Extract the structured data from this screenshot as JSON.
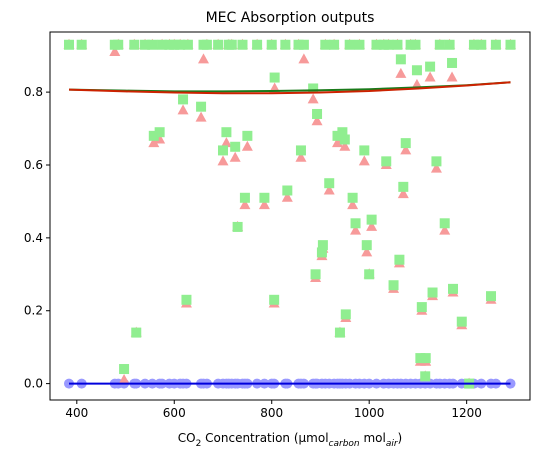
{
  "chart_data": {
    "type": "scatter",
    "title": "MEC Absorption outputs",
    "xlabel": {
      "base": "CO",
      "sub": "2",
      "mid": " Concentration (μmol",
      "sub2": "carbon",
      "mid2": " mol",
      "sub3": "air",
      "end": ")"
    },
    "ylabel": "",
    "xlim": [
      345,
      1330
    ],
    "ylim": [
      -0.045,
      0.965
    ],
    "xticks": [
      400,
      600,
      800,
      1000,
      1200
    ],
    "yticks": [
      0.0,
      0.2,
      0.4,
      0.6,
      0.8
    ],
    "xtick_labels": [
      "400",
      "600",
      "800",
      "1000",
      "1200"
    ],
    "ytick_labels": [
      "0.0",
      "0.2",
      "0.4",
      "0.6",
      "0.8"
    ],
    "grid": false,
    "series": [
      {
        "marker": "triangle",
        "color": "#f79a9a",
        "points": [
          [
            384,
            0.93
          ],
          [
            410,
            0.93
          ],
          [
            478,
            0.91
          ],
          [
            485,
            0.93
          ],
          [
            497,
            0.01
          ],
          [
            518,
            0.93
          ],
          [
            522,
            0.14
          ],
          [
            540,
            0.93
          ],
          [
            555,
            0.93
          ],
          [
            558,
            0.66
          ],
          [
            570,
            0.67
          ],
          [
            575,
            0.93
          ],
          [
            590,
            0.93
          ],
          [
            600,
            0.93
          ],
          [
            612,
            0.93
          ],
          [
            618,
            0.75
          ],
          [
            625,
            0.22
          ],
          [
            628,
            0.93
          ],
          [
            655,
            0.73
          ],
          [
            660,
            0.89
          ],
          [
            667,
            0.93
          ],
          [
            690,
            0.93
          ],
          [
            700,
            0.61
          ],
          [
            707,
            0.66
          ],
          [
            712,
            0.93
          ],
          [
            718,
            0.93
          ],
          [
            725,
            0.62
          ],
          [
            730,
            0.43
          ],
          [
            740,
            0.93
          ],
          [
            745,
            0.49
          ],
          [
            750,
            0.65
          ],
          [
            770,
            0.93
          ],
          [
            785,
            0.49
          ],
          [
            800,
            0.93
          ],
          [
            805,
            0.22
          ],
          [
            806,
            0.81
          ],
          [
            828,
            0.93
          ],
          [
            832,
            0.51
          ],
          [
            855,
            0.93
          ],
          [
            860,
            0.62
          ],
          [
            866,
            0.89
          ],
          [
            885,
            0.78
          ],
          [
            890,
            0.29
          ],
          [
            893,
            0.72
          ],
          [
            903,
            0.35
          ],
          [
            905,
            0.37
          ],
          [
            910,
            0.93
          ],
          [
            918,
            0.53
          ],
          [
            928,
            0.93
          ],
          [
            935,
            0.66
          ],
          [
            940,
            0.14
          ],
          [
            945,
            0.67
          ],
          [
            950,
            0.65
          ],
          [
            952,
            0.18
          ],
          [
            960,
            0.93
          ],
          [
            966,
            0.49
          ],
          [
            972,
            0.42
          ],
          [
            980,
            0.93
          ],
          [
            990,
            0.61
          ],
          [
            995,
            0.36
          ],
          [
            1000,
            0.3
          ],
          [
            1005,
            0.43
          ],
          [
            1015,
            0.93
          ],
          [
            1030,
            0.93
          ],
          [
            1035,
            0.6
          ],
          [
            1040,
            0.93
          ],
          [
            1050,
            0.26
          ],
          [
            1058,
            0.93
          ],
          [
            1062,
            0.33
          ],
          [
            1065,
            0.85
          ],
          [
            1070,
            0.52
          ],
          [
            1075,
            0.64
          ],
          [
            1085,
            0.93
          ],
          [
            1095,
            0.93
          ],
          [
            1098,
            0.82
          ],
          [
            1105,
            0.06
          ],
          [
            1108,
            0.2
          ],
          [
            1115,
            0.02
          ],
          [
            1116,
            0.06
          ],
          [
            1125,
            0.84
          ],
          [
            1130,
            0.24
          ],
          [
            1138,
            0.59
          ],
          [
            1145,
            0.93
          ],
          [
            1155,
            0.42
          ],
          [
            1165,
            0.93
          ],
          [
            1170,
            0.84
          ],
          [
            1172,
            0.25
          ],
          [
            1190,
            0.16
          ],
          [
            1205,
            0.0
          ],
          [
            1215,
            0.93
          ],
          [
            1230,
            0.93
          ],
          [
            1250,
            0.23
          ],
          [
            1260,
            0.93
          ],
          [
            1290,
            0.93
          ]
        ]
      },
      {
        "marker": "square",
        "color": "#90ee90",
        "points": [
          [
            384,
            0.93
          ],
          [
            410,
            0.93
          ],
          [
            478,
            0.93
          ],
          [
            485,
            0.93
          ],
          [
            497,
            0.04
          ],
          [
            518,
            0.93
          ],
          [
            522,
            0.14
          ],
          [
            540,
            0.93
          ],
          [
            555,
            0.93
          ],
          [
            558,
            0.68
          ],
          [
            570,
            0.69
          ],
          [
            575,
            0.93
          ],
          [
            590,
            0.93
          ],
          [
            600,
            0.93
          ],
          [
            612,
            0.93
          ],
          [
            618,
            0.78
          ],
          [
            625,
            0.23
          ],
          [
            628,
            0.93
          ],
          [
            655,
            0.76
          ],
          [
            660,
            0.93
          ],
          [
            667,
            0.93
          ],
          [
            690,
            0.93
          ],
          [
            700,
            0.64
          ],
          [
            707,
            0.69
          ],
          [
            712,
            0.93
          ],
          [
            718,
            0.93
          ],
          [
            725,
            0.65
          ],
          [
            730,
            0.43
          ],
          [
            740,
            0.93
          ],
          [
            745,
            0.51
          ],
          [
            750,
            0.68
          ],
          [
            770,
            0.93
          ],
          [
            785,
            0.51
          ],
          [
            800,
            0.93
          ],
          [
            805,
            0.23
          ],
          [
            806,
            0.84
          ],
          [
            828,
            0.93
          ],
          [
            832,
            0.53
          ],
          [
            855,
            0.93
          ],
          [
            860,
            0.64
          ],
          [
            866,
            0.93
          ],
          [
            885,
            0.81
          ],
          [
            890,
            0.3
          ],
          [
            893,
            0.74
          ],
          [
            903,
            0.36
          ],
          [
            905,
            0.38
          ],
          [
            910,
            0.93
          ],
          [
            918,
            0.55
          ],
          [
            928,
            0.93
          ],
          [
            935,
            0.68
          ],
          [
            940,
            0.14
          ],
          [
            945,
            0.69
          ],
          [
            950,
            0.67
          ],
          [
            952,
            0.19
          ],
          [
            960,
            0.93
          ],
          [
            966,
            0.51
          ],
          [
            972,
            0.44
          ],
          [
            980,
            0.93
          ],
          [
            990,
            0.64
          ],
          [
            995,
            0.38
          ],
          [
            1000,
            0.3
          ],
          [
            1005,
            0.45
          ],
          [
            1015,
            0.93
          ],
          [
            1030,
            0.93
          ],
          [
            1035,
            0.61
          ],
          [
            1040,
            0.93
          ],
          [
            1050,
            0.27
          ],
          [
            1058,
            0.93
          ],
          [
            1062,
            0.34
          ],
          [
            1065,
            0.89
          ],
          [
            1070,
            0.54
          ],
          [
            1075,
            0.66
          ],
          [
            1085,
            0.93
          ],
          [
            1095,
            0.93
          ],
          [
            1098,
            0.86
          ],
          [
            1105,
            0.07
          ],
          [
            1108,
            0.21
          ],
          [
            1115,
            0.02
          ],
          [
            1116,
            0.07
          ],
          [
            1125,
            0.87
          ],
          [
            1130,
            0.25
          ],
          [
            1138,
            0.61
          ],
          [
            1145,
            0.93
          ],
          [
            1155,
            0.44
          ],
          [
            1165,
            0.93
          ],
          [
            1170,
            0.88
          ],
          [
            1172,
            0.26
          ],
          [
            1190,
            0.17
          ],
          [
            1205,
            0.0
          ],
          [
            1215,
            0.93
          ],
          [
            1230,
            0.93
          ],
          [
            1250,
            0.24
          ],
          [
            1260,
            0.93
          ],
          [
            1290,
            0.93
          ]
        ]
      },
      {
        "marker": "circle",
        "color": "#9999ff",
        "points": [
          [
            384,
            0.0
          ],
          [
            410,
            0.0
          ],
          [
            478,
            0.0
          ],
          [
            485,
            0.0
          ],
          [
            497,
            0.0
          ],
          [
            518,
            0.0
          ],
          [
            522,
            0.0
          ],
          [
            540,
            0.0
          ],
          [
            555,
            0.0
          ],
          [
            570,
            0.0
          ],
          [
            575,
            0.0
          ],
          [
            590,
            0.0
          ],
          [
            600,
            0.0
          ],
          [
            612,
            0.0
          ],
          [
            618,
            0.0
          ],
          [
            625,
            0.0
          ],
          [
            655,
            0.0
          ],
          [
            660,
            0.0
          ],
          [
            667,
            0.0
          ],
          [
            690,
            0.0
          ],
          [
            700,
            0.0
          ],
          [
            707,
            0.0
          ],
          [
            712,
            0.0
          ],
          [
            718,
            0.0
          ],
          [
            725,
            0.0
          ],
          [
            730,
            0.0
          ],
          [
            740,
            0.0
          ],
          [
            745,
            0.0
          ],
          [
            750,
            0.0
          ],
          [
            770,
            0.0
          ],
          [
            785,
            0.0
          ],
          [
            800,
            0.0
          ],
          [
            805,
            0.0
          ],
          [
            828,
            0.0
          ],
          [
            832,
            0.0
          ],
          [
            855,
            0.0
          ],
          [
            860,
            0.0
          ],
          [
            866,
            0.0
          ],
          [
            885,
            0.0
          ],
          [
            890,
            0.0
          ],
          [
            893,
            0.0
          ],
          [
            903,
            0.0
          ],
          [
            910,
            0.0
          ],
          [
            918,
            0.0
          ],
          [
            928,
            0.0
          ],
          [
            935,
            0.0
          ],
          [
            940,
            0.0
          ],
          [
            945,
            0.0
          ],
          [
            952,
            0.0
          ],
          [
            960,
            0.0
          ],
          [
            972,
            0.0
          ],
          [
            980,
            0.0
          ],
          [
            990,
            0.0
          ],
          [
            1000,
            0.0
          ],
          [
            1015,
            0.0
          ],
          [
            1030,
            0.0
          ],
          [
            1040,
            0.0
          ],
          [
            1050,
            0.0
          ],
          [
            1058,
            0.0
          ],
          [
            1065,
            0.0
          ],
          [
            1075,
            0.0
          ],
          [
            1085,
            0.0
          ],
          [
            1095,
            0.0
          ],
          [
            1105,
            0.0
          ],
          [
            1115,
            0.0
          ],
          [
            1125,
            0.0
          ],
          [
            1138,
            0.0
          ],
          [
            1145,
            0.0
          ],
          [
            1155,
            0.0
          ],
          [
            1165,
            0.0
          ],
          [
            1172,
            0.0
          ],
          [
            1190,
            0.0
          ],
          [
            1205,
            0.0
          ],
          [
            1215,
            0.0
          ],
          [
            1230,
            0.0
          ],
          [
            1250,
            0.0
          ],
          [
            1260,
            0.0
          ],
          [
            1290,
            0.0
          ]
        ]
      }
    ],
    "fit_lines": [
      {
        "color": "#1a7a1a",
        "x": [
          384,
          500,
          600,
          700,
          800,
          900,
          1000,
          1100,
          1200,
          1290
        ],
        "y": [
          0.807,
          0.804,
          0.802,
          0.802,
          0.803,
          0.805,
          0.808,
          0.813,
          0.819,
          0.827
        ]
      },
      {
        "color": "#cc2200",
        "x": [
          384,
          500,
          600,
          700,
          800,
          900,
          1000,
          1100,
          1200,
          1290
        ],
        "y": [
          0.807,
          0.802,
          0.799,
          0.797,
          0.797,
          0.799,
          0.803,
          0.81,
          0.818,
          0.827
        ]
      },
      {
        "color": "#0000dd",
        "x": [
          384,
          1290
        ],
        "y": [
          0.0,
          0.0
        ]
      }
    ]
  }
}
